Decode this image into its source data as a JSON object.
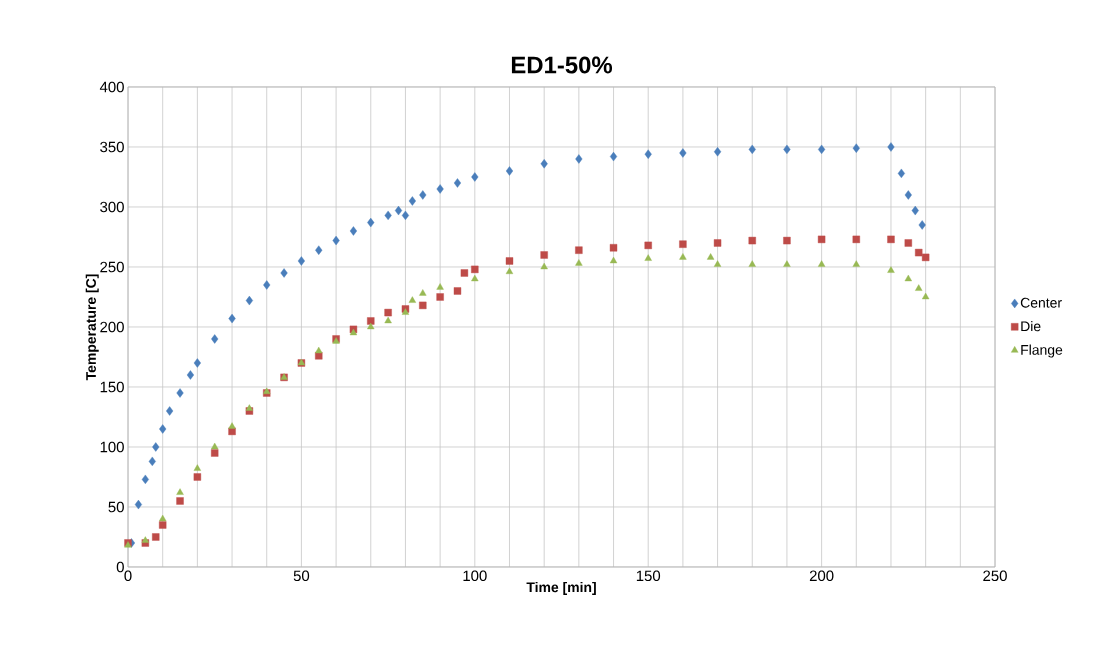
{
  "chart_data": {
    "type": "scatter",
    "title": "ED1-50%",
    "xlabel": "Time [min]",
    "ylabel": "Temperature [C]",
    "xlim": [
      0,
      250
    ],
    "ylim": [
      0,
      400
    ],
    "xticks": [
      0,
      {
        "value": 10,
        "label": null
      },
      {
        "value": 20,
        "label": null
      },
      {
        "value": 30,
        "label": null
      },
      {
        "value": 40,
        "label": null
      },
      50,
      {
        "value": 60,
        "label": null
      },
      {
        "value": 70,
        "label": null
      },
      {
        "value": 80,
        "label": null
      },
      {
        "value": 90,
        "label": null
      },
      100,
      {
        "value": 110,
        "label": null
      },
      {
        "value": 120,
        "label": null
      },
      {
        "value": 130,
        "label": null
      },
      {
        "value": 140,
        "label": null
      },
      150,
      {
        "value": 160,
        "label": null
      },
      {
        "value": 170,
        "label": null
      },
      {
        "value": 180,
        "label": null
      },
      {
        "value": 190,
        "label": null
      },
      200,
      {
        "value": 210,
        "label": null
      },
      {
        "value": 220,
        "label": null
      },
      {
        "value": 230,
        "label": null
      },
      {
        "value": 240,
        "label": null
      },
      250
    ],
    "yticks": [
      0,
      50,
      100,
      150,
      200,
      250,
      300,
      350,
      400
    ],
    "grid": true,
    "legend": "right",
    "series": [
      {
        "name": "Center",
        "color": "#4a7ebb",
        "marker": "diamond",
        "x": [
          1,
          3,
          5,
          7,
          8,
          10,
          12,
          15,
          18,
          20,
          25,
          30,
          35,
          40,
          45,
          50,
          55,
          60,
          65,
          70,
          75,
          78,
          80,
          82,
          85,
          90,
          95,
          100,
          110,
          120,
          130,
          140,
          150,
          160,
          170,
          180,
          190,
          200,
          210,
          220,
          223,
          225,
          227,
          229
        ],
        "values": [
          20,
          52,
          73,
          88,
          100,
          115,
          130,
          145,
          160,
          170,
          190,
          207,
          222,
          235,
          245,
          255,
          264,
          272,
          280,
          287,
          293,
          297,
          293,
          305,
          310,
          315,
          320,
          325,
          330,
          336,
          340,
          342,
          344,
          345,
          346,
          348,
          348,
          348,
          349,
          350,
          328,
          310,
          297,
          285
        ]
      },
      {
        "name": "Die",
        "color": "#be4b48",
        "marker": "square",
        "x": [
          0,
          5,
          8,
          10,
          15,
          20,
          25,
          30,
          35,
          40,
          45,
          50,
          55,
          60,
          65,
          70,
          75,
          80,
          85,
          90,
          95,
          97,
          100,
          110,
          120,
          130,
          140,
          150,
          160,
          170,
          180,
          190,
          200,
          210,
          220,
          225,
          228,
          230
        ],
        "values": [
          20,
          20,
          25,
          35,
          55,
          75,
          95,
          113,
          130,
          145,
          158,
          170,
          176,
          190,
          198,
          205,
          212,
          215,
          218,
          225,
          230,
          245,
          248,
          255,
          260,
          264,
          266,
          268,
          269,
          270,
          272,
          272,
          273,
          273,
          273,
          270,
          262,
          258
        ]
      },
      {
        "name": "Flange",
        "color": "#98b954",
        "marker": "triangle",
        "x": [
          0,
          5,
          10,
          15,
          20,
          25,
          30,
          35,
          40,
          45,
          50,
          55,
          60,
          65,
          70,
          75,
          80,
          82,
          85,
          90,
          100,
          110,
          120,
          130,
          140,
          150,
          160,
          168,
          170,
          180,
          190,
          200,
          210,
          220,
          225,
          228,
          230
        ],
        "values": [
          18,
          22,
          40,
          62,
          82,
          100,
          117,
          132,
          146,
          158,
          170,
          180,
          188,
          195,
          200,
          205,
          212,
          222,
          228,
          233,
          240,
          246,
          250,
          253,
          255,
          257,
          258,
          258,
          252,
          252,
          252,
          252,
          252,
          247,
          240,
          232,
          225
        ]
      }
    ]
  }
}
